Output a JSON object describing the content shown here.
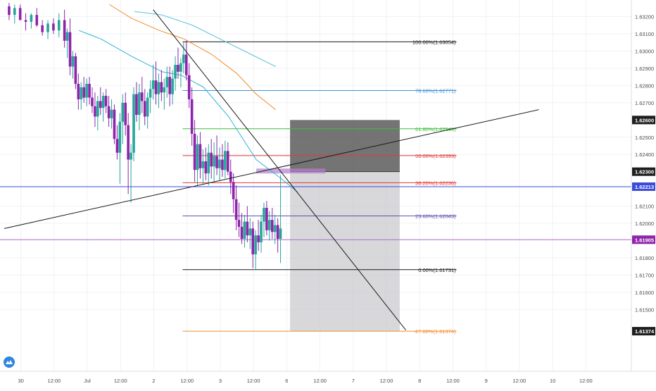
{
  "colors": {
    "up": "#26a69a",
    "down": "#8e24aa",
    "grid": "#eef1f5",
    "axis_text": "#4a4a4a",
    "current_price_bg": "#8e24aa",
    "horizontal_line": "#3a4bd8",
    "horizontal_line_bg": "#3a4bd8",
    "ema_fast": "#31b0d8",
    "ema_mid": "#f08c2a",
    "ema_slow": "#5bc0de",
    "trendline": "#1a1a1a",
    "stop_zone": "#555555",
    "target_zone": "#c8c8cc"
  },
  "icons": {
    "logo": "tradingview-cloud-icon"
  },
  "chart_data": {
    "type": "candlestick",
    "y_range": [
      1.6125,
      1.6325
    ],
    "x_range": [
      0,
      224
    ],
    "y_ticks": [
      {
        "value": 1.632,
        "label": "1.63200"
      },
      {
        "value": 1.631,
        "label": "1.63100"
      },
      {
        "value": 1.63,
        "label": "1.63000"
      },
      {
        "value": 1.629,
        "label": "1.62900"
      },
      {
        "value": 1.628,
        "label": "1.62800"
      },
      {
        "value": 1.627,
        "label": "1.62700"
      },
      {
        "value": 1.625,
        "label": "1.62500"
      },
      {
        "value": 1.624,
        "label": "1.62400"
      },
      {
        "value": 1.621,
        "label": "1.62100"
      },
      {
        "value": 1.62,
        "label": "1.62000"
      },
      {
        "value": 1.618,
        "label": "1.61800"
      },
      {
        "value": 1.617,
        "label": "1.61700"
      },
      {
        "value": 1.616,
        "label": "1.61600"
      },
      {
        "value": 1.615,
        "label": "1.61500"
      }
    ],
    "x_ticks": [
      {
        "x": 6,
        "label": "30"
      },
      {
        "x": 18,
        "label": "12:00"
      },
      {
        "x": 30,
        "label": "Jul"
      },
      {
        "x": 42,
        "label": "12:00"
      },
      {
        "x": 54,
        "label": "2"
      },
      {
        "x": 66,
        "label": "12:00"
      },
      {
        "x": 78,
        "label": "3"
      },
      {
        "x": 90,
        "label": "12:00"
      },
      {
        "x": 102,
        "label": "6"
      },
      {
        "x": 114,
        "label": "12:00"
      },
      {
        "x": 126,
        "label": "7"
      },
      {
        "x": 138,
        "label": "12:00"
      },
      {
        "x": 150,
        "label": "8"
      },
      {
        "x": 162,
        "label": "12:00"
      },
      {
        "x": 174,
        "label": "9"
      },
      {
        "x": 186,
        "label": "12:00"
      },
      {
        "x": 198,
        "label": "10"
      },
      {
        "x": 210,
        "label": "12:00"
      }
    ],
    "price_badges": [
      {
        "value": 1.626,
        "label": "1.62600",
        "style": "dark"
      },
      {
        "value": 1.623,
        "label": "1.62300",
        "style": "dark"
      },
      {
        "value": 1.62213,
        "label": "1.62213",
        "style": "blue"
      },
      {
        "value": 1.61905,
        "label": "1.61905",
        "style": "purple"
      },
      {
        "value": 1.61374,
        "label": "1.61374",
        "style": "dark"
      }
    ],
    "fib_levels": [
      {
        "label": "100.00%(1.63054)",
        "value": 1.63054,
        "color": "#1a1a1a"
      },
      {
        "label": "78.60%(1.62771)",
        "value": 1.62771,
        "color": "#3d8fd6"
      },
      {
        "label": "61.80%(1.62549)",
        "value": 1.62549,
        "color": "#3cbf3c"
      },
      {
        "label": "50.00%(1.62393)",
        "value": 1.62393,
        "color": "#e53935"
      },
      {
        "label": "38.20%(1.62236)",
        "value": 1.62236,
        "color": "#e53935"
      },
      {
        "label": "23.60%(1.62043)",
        "value": 1.62043,
        "color": "#5c4fb0"
      },
      {
        "label": "0.00%(1.61731)",
        "value": 1.61731,
        "color": "#1a1a1a"
      },
      {
        "label": "-27.00%(1.61374)",
        "value": 1.61374,
        "color": "#f08c2a"
      }
    ],
    "fib_x_range": [
      64.4,
      163.3
    ],
    "horizontal_lines": [
      {
        "value": 1.62213,
        "color": "#3a4bd8"
      },
      {
        "value": 1.61905,
        "color": "#b06ac8"
      }
    ],
    "trendlines": [
      {
        "x1": 0,
        "y1": 1.6197,
        "x2": 193,
        "y2": 1.6266
      },
      {
        "x1": 53.8,
        "y1": 1.6324,
        "x2": 145,
        "y2": 1.6138
      }
    ],
    "emas": [
      {
        "name": "",
        "color": "#31b0d8",
        "points": [
          [
            27,
            1.6312
          ],
          [
            35,
            1.6307
          ],
          [
            46,
            1.6297
          ],
          [
            57,
            1.6288
          ],
          [
            64,
            1.6286
          ],
          [
            72,
            1.6279
          ],
          [
            81,
            1.6262
          ],
          [
            91,
            1.6237
          ],
          [
            100,
            1.6226
          ],
          [
            106,
            1.6218
          ]
        ]
      },
      {
        "name": "",
        "color": "#f08c2a",
        "points": [
          [
            38,
            1.6327
          ],
          [
            46,
            1.6319
          ],
          [
            56,
            1.6312
          ],
          [
            65,
            1.6307
          ],
          [
            75,
            1.6298
          ],
          [
            84,
            1.6287
          ],
          [
            91,
            1.6275
          ],
          [
            98,
            1.6266
          ]
        ]
      },
      {
        "name": "",
        "color": "#5bc0de",
        "points": [
          [
            47,
            1.6323
          ],
          [
            57,
            1.6321
          ],
          [
            68,
            1.6315
          ],
          [
            78,
            1.6307
          ],
          [
            88,
            1.6299
          ],
          [
            98,
            1.6291
          ]
        ]
      }
    ],
    "position": {
      "x_start": 103.2,
      "x_end": 142.8,
      "stop": 1.626,
      "entry": 1.623,
      "target": 1.61374
    },
    "entry_marker": {
      "x_start": 91,
      "x_end": 116,
      "low": 1.6229,
      "high": 1.6231
    },
    "candles": [
      [
        1,
        1.6326,
        1.6328,
        1.6318,
        1.6321
      ],
      [
        3,
        1.6321,
        1.6327,
        1.6316,
        1.6325
      ],
      [
        5,
        1.6325,
        1.6327,
        1.6318,
        1.6318
      ],
      [
        7,
        1.6318,
        1.6322,
        1.6312,
        1.6317
      ],
      [
        9,
        1.6317,
        1.6322,
        1.6313,
        1.6321
      ],
      [
        11,
        1.6321,
        1.6325,
        1.6314,
        1.6315
      ],
      [
        13,
        1.6315,
        1.6318,
        1.6309,
        1.6311
      ],
      [
        15,
        1.6311,
        1.6318,
        1.6307,
        1.6316
      ],
      [
        17,
        1.6316,
        1.6319,
        1.631,
        1.6312
      ],
      [
        19,
        1.6312,
        1.6322,
        1.6308,
        1.6318
      ],
      [
        21,
        1.6318,
        1.6324,
        1.6302,
        1.6306
      ],
      [
        22,
        1.6306,
        1.6313,
        1.6296,
        1.6311
      ],
      [
        23,
        1.6311,
        1.6319,
        1.6286,
        1.6291
      ],
      [
        24,
        1.6291,
        1.63,
        1.6284,
        1.6297
      ],
      [
        25,
        1.6297,
        1.6299,
        1.6278,
        1.6281
      ],
      [
        26,
        1.6281,
        1.6287,
        1.6266,
        1.6272
      ],
      [
        27,
        1.6272,
        1.6282,
        1.6266,
        1.6279
      ],
      [
        28,
        1.6279,
        1.6285,
        1.627,
        1.6273
      ],
      [
        29,
        1.6273,
        1.6284,
        1.6268,
        1.6281
      ],
      [
        30,
        1.6281,
        1.6285,
        1.6269,
        1.6273
      ],
      [
        31,
        1.6273,
        1.6279,
        1.6264,
        1.6268
      ],
      [
        32,
        1.6268,
        1.6276,
        1.6256,
        1.6262
      ],
      [
        33,
        1.6262,
        1.6274,
        1.6254,
        1.6271
      ],
      [
        34,
        1.6271,
        1.6279,
        1.6263,
        1.6267
      ],
      [
        35,
        1.6267,
        1.6276,
        1.6259,
        1.6274
      ],
      [
        36,
        1.6274,
        1.6278,
        1.6264,
        1.6268
      ],
      [
        37,
        1.6268,
        1.6274,
        1.6256,
        1.6261
      ],
      [
        38,
        1.6261,
        1.6272,
        1.6255,
        1.6266
      ],
      [
        39,
        1.6266,
        1.6269,
        1.6246,
        1.6249
      ],
      [
        40,
        1.6249,
        1.6257,
        1.6237,
        1.6241
      ],
      [
        41,
        1.6241,
        1.6264,
        1.6223,
        1.6259
      ],
      [
        42,
        1.6259,
        1.6275,
        1.6246,
        1.627
      ],
      [
        43,
        1.627,
        1.6276,
        1.6251,
        1.6257
      ],
      [
        44,
        1.6257,
        1.6264,
        1.6217,
        1.6237
      ],
      [
        45,
        1.6237,
        1.6246,
        1.6212,
        1.6241
      ],
      [
        46,
        1.6241,
        1.6279,
        1.6236,
        1.6275
      ],
      [
        47,
        1.6275,
        1.6282,
        1.6259,
        1.6263
      ],
      [
        48,
        1.6263,
        1.6281,
        1.6254,
        1.6276
      ],
      [
        49,
        1.6276,
        1.6285,
        1.6264,
        1.6271
      ],
      [
        50,
        1.6271,
        1.6278,
        1.6257,
        1.6262
      ],
      [
        51,
        1.6262,
        1.6276,
        1.6255,
        1.6273
      ],
      [
        52,
        1.6273,
        1.6283,
        1.6264,
        1.6278
      ],
      [
        53,
        1.6278,
        1.6292,
        1.6272,
        1.6283
      ],
      [
        54,
        1.6283,
        1.6294,
        1.6269,
        1.6275
      ],
      [
        55,
        1.6275,
        1.6287,
        1.6267,
        1.6282
      ],
      [
        56,
        1.6282,
        1.6289,
        1.6271,
        1.6276
      ],
      [
        57,
        1.6276,
        1.6284,
        1.6266,
        1.6279
      ],
      [
        58,
        1.6279,
        1.6291,
        1.6273,
        1.6285
      ],
      [
        59,
        1.6285,
        1.6291,
        1.6268,
        1.6275
      ],
      [
        60,
        1.6275,
        1.6289,
        1.6269,
        1.6284
      ],
      [
        61,
        1.6284,
        1.6297,
        1.6277,
        1.6292
      ],
      [
        62,
        1.6292,
        1.6302,
        1.6284,
        1.6288
      ],
      [
        63,
        1.6288,
        1.6296,
        1.6279,
        1.6293
      ],
      [
        64,
        1.6293,
        1.6305,
        1.6287,
        1.6298
      ],
      [
        65,
        1.6298,
        1.6306,
        1.6283,
        1.6286
      ],
      [
        66,
        1.6286,
        1.6293,
        1.6267,
        1.6272
      ],
      [
        67,
        1.6272,
        1.6279,
        1.6245,
        1.6252
      ],
      [
        68,
        1.6252,
        1.626,
        1.6224,
        1.6231
      ],
      [
        69,
        1.6231,
        1.6251,
        1.6222,
        1.6246
      ],
      [
        70,
        1.6246,
        1.6253,
        1.6226,
        1.6232
      ],
      [
        71,
        1.6232,
        1.6243,
        1.6223,
        1.6236
      ],
      [
        72,
        1.6236,
        1.6244,
        1.6225,
        1.6229
      ],
      [
        73,
        1.6229,
        1.6246,
        1.6222,
        1.6241
      ],
      [
        74,
        1.6241,
        1.6249,
        1.6226,
        1.6233
      ],
      [
        75,
        1.6233,
        1.6247,
        1.6224,
        1.6239
      ],
      [
        76,
        1.6239,
        1.6251,
        1.6228,
        1.6232
      ],
      [
        77,
        1.6232,
        1.6244,
        1.6225,
        1.6237
      ],
      [
        78,
        1.6237,
        1.6246,
        1.6227,
        1.6231
      ],
      [
        79,
        1.6231,
        1.6248,
        1.6226,
        1.6242
      ],
      [
        80,
        1.6242,
        1.6247,
        1.6228,
        1.623
      ],
      [
        81,
        1.623,
        1.6237,
        1.6217,
        1.6224
      ],
      [
        82,
        1.6224,
        1.6229,
        1.6206,
        1.6214
      ],
      [
        83,
        1.6214,
        1.6222,
        1.6196,
        1.6202
      ],
      [
        84,
        1.6202,
        1.6212,
        1.6192,
        1.6198
      ],
      [
        85,
        1.6198,
        1.6206,
        1.6188,
        1.6191
      ],
      [
        86,
        1.6191,
        1.6205,
        1.6186,
        1.6201
      ],
      [
        87,
        1.6201,
        1.621,
        1.6189,
        1.6193
      ],
      [
        88,
        1.6193,
        1.6203,
        1.6185,
        1.6197
      ],
      [
        89,
        1.6197,
        1.6201,
        1.6174,
        1.6182
      ],
      [
        90,
        1.6182,
        1.6196,
        1.6173,
        1.6193
      ],
      [
        91,
        1.6193,
        1.6202,
        1.6184,
        1.6189
      ],
      [
        92,
        1.6189,
        1.6205,
        1.6183,
        1.6201
      ],
      [
        93,
        1.6201,
        1.6212,
        1.6192,
        1.6209
      ],
      [
        94,
        1.6209,
        1.6213,
        1.6193,
        1.6196
      ],
      [
        95,
        1.6196,
        1.6207,
        1.619,
        1.6202
      ],
      [
        96,
        1.6202,
        1.6209,
        1.6191,
        1.6195
      ],
      [
        97,
        1.6195,
        1.6205,
        1.6188,
        1.6199
      ],
      [
        98,
        1.6199,
        1.6203,
        1.6183,
        1.6191
      ],
      [
        99,
        1.6191,
        1.6228,
        1.6177,
        1.6197
      ]
    ]
  }
}
